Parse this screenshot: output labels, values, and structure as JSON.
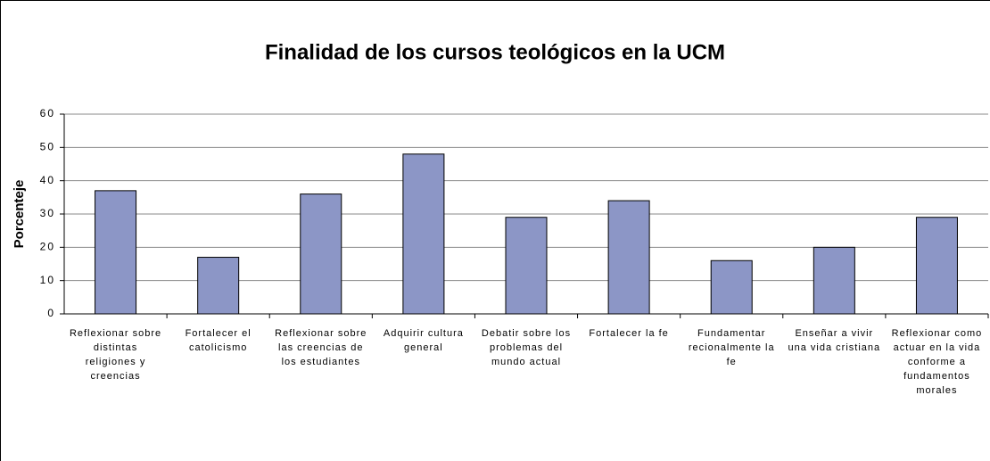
{
  "chart_data": {
    "type": "bar",
    "title": "Finalidad de los cursos teológicos en la UCM",
    "y_label": "Porcenteje",
    "categories": [
      "Reflexionar sobre distintas religiones y creencias",
      "Fortalecer el catolicismo",
      "Reflexionar sobre las creencias de los estudiantes",
      "Adquirir cultura general",
      "Debatir sobre los problemas del mundo actual",
      "Fortalecer la fe",
      "Fundamentar recionalmente la fe",
      "Enseñar a vivir una vida cristiana",
      "Reflexionar como actuar en la vida conforme a fundamentos morales"
    ],
    "values": [
      37,
      17,
      36,
      48,
      29,
      34,
      16,
      20,
      29
    ],
    "color": "#8c96c6",
    "ylim": [
      0,
      60
    ],
    "yticks": [
      0,
      10,
      20,
      30,
      40,
      50,
      60
    ],
    "grid": true
  }
}
